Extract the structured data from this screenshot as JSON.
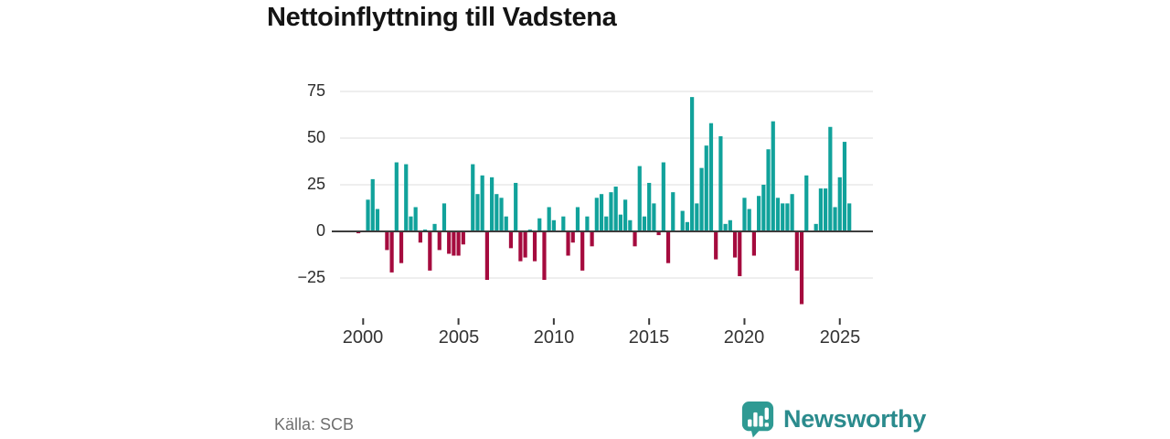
{
  "title": "Nettoinflyttning till Vadstena",
  "source": "Källa: SCB",
  "logo": {
    "text": "Newsworthy"
  },
  "colors": {
    "positive": "#11a29b",
    "negative": "#a50b3e",
    "grid": "#dedede",
    "axis": "#3d3d3d",
    "tick": "#3a3a3a",
    "logo_icon": "#2f9a93",
    "logo_text": "#2b8b8d"
  },
  "chart_data": {
    "type": "bar",
    "title": "Nettoinflyttning till Vadstena",
    "frequency": "quarterly",
    "first_period": "1999 Q4",
    "last_period": "2025 Q3",
    "x_ticks": [
      "2000",
      "2005",
      "2010",
      "2015",
      "2020",
      "2025"
    ],
    "y_ticks": [
      "75",
      "50",
      "25",
      "0",
      "−25"
    ],
    "y_gridlines": [
      75,
      50,
      25,
      0,
      -25
    ],
    "series": [
      {
        "year": 1999,
        "quarters": [
          null,
          null,
          null,
          -1
        ]
      },
      {
        "year": 2000,
        "quarters": [
          0,
          17,
          28,
          12
        ]
      },
      {
        "year": 2001,
        "quarters": [
          0,
          -10,
          -22,
          37
        ]
      },
      {
        "year": 2002,
        "quarters": [
          -17,
          36,
          8,
          13
        ]
      },
      {
        "year": 2003,
        "quarters": [
          -6,
          1,
          -21,
          4
        ]
      },
      {
        "year": 2004,
        "quarters": [
          -10,
          15,
          -12,
          -13
        ]
      },
      {
        "year": 2005,
        "quarters": [
          -13,
          -7,
          0,
          36
        ]
      },
      {
        "year": 2006,
        "quarters": [
          20,
          30,
          -26,
          29
        ]
      },
      {
        "year": 2007,
        "quarters": [
          20,
          18,
          8,
          -9
        ]
      },
      {
        "year": 2008,
        "quarters": [
          26,
          -16,
          -14,
          1
        ]
      },
      {
        "year": 2009,
        "quarters": [
          -16,
          7,
          -26,
          13
        ]
      },
      {
        "year": 2010,
        "quarters": [
          6,
          0,
          8,
          -13
        ]
      },
      {
        "year": 2011,
        "quarters": [
          -6,
          13,
          -21,
          8
        ]
      },
      {
        "year": 2012,
        "quarters": [
          -8,
          18,
          20,
          8
        ]
      },
      {
        "year": 2013,
        "quarters": [
          21,
          24,
          9,
          17
        ]
      },
      {
        "year": 2014,
        "quarters": [
          6,
          -8,
          35,
          8
        ]
      },
      {
        "year": 2015,
        "quarters": [
          26,
          15,
          -2,
          37
        ]
      },
      {
        "year": 2016,
        "quarters": [
          -17,
          21,
          0,
          11
        ]
      },
      {
        "year": 2017,
        "quarters": [
          5,
          72,
          15,
          34
        ]
      },
      {
        "year": 2018,
        "quarters": [
          46,
          58,
          -15,
          51
        ]
      },
      {
        "year": 2019,
        "quarters": [
          4,
          6,
          -14,
          -24
        ]
      },
      {
        "year": 2020,
        "quarters": [
          18,
          12,
          -13,
          19
        ]
      },
      {
        "year": 2021,
        "quarters": [
          25,
          44,
          59,
          18
        ]
      },
      {
        "year": 2022,
        "quarters": [
          15,
          15,
          20,
          -21
        ]
      },
      {
        "year": 2023,
        "quarters": [
          -39,
          30,
          0,
          4
        ]
      },
      {
        "year": 2024,
        "quarters": [
          23,
          23,
          56,
          13
        ]
      },
      {
        "year": 2025,
        "quarters": [
          29,
          48,
          15,
          null
        ]
      }
    ]
  }
}
